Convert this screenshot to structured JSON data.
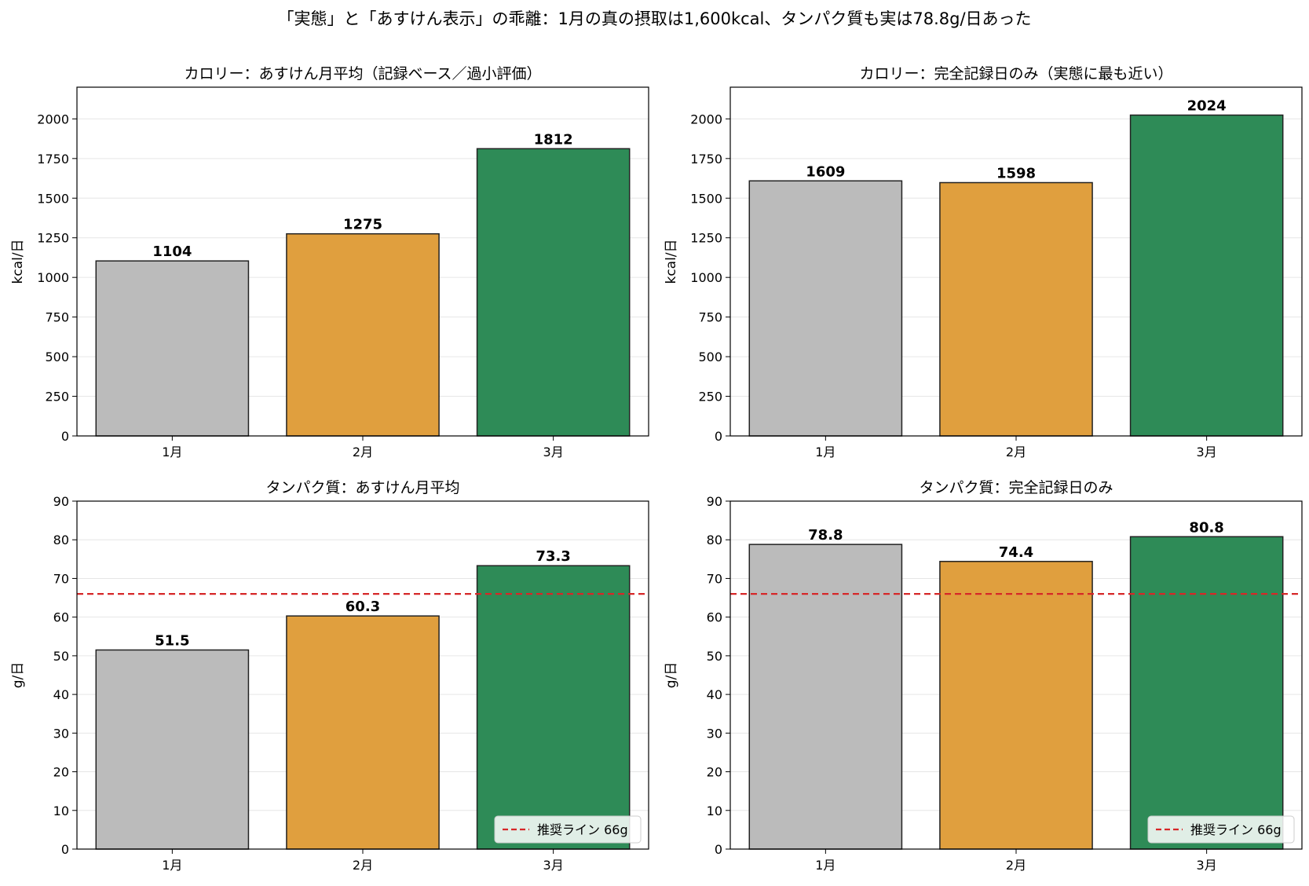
{
  "suptitle": "「実態」と「あすけん表示」の乖離：1月の真の摂取は1,600kcal、タンパク質も実は78.8g/日あった",
  "colors": {
    "jan": "#bbbbbb",
    "feb": "#e09f3e",
    "mar": "#2e8b57",
    "edge": "#222222",
    "recommended_line": "#d62728",
    "grid": "#e6e6e6"
  },
  "chart_data": [
    {
      "type": "bar",
      "title": "カロリー：あすけん月平均（記録ベース／過小評価）",
      "ylabel": "kcal/日",
      "categories": [
        "1月",
        "2月",
        "3月"
      ],
      "values": [
        1104,
        1275,
        1812
      ],
      "value_labels": [
        "1104",
        "1275",
        "1812"
      ],
      "ylim": [
        0,
        2200
      ],
      "yticks": [
        0,
        250,
        500,
        750,
        1000,
        1250,
        1500,
        1750,
        2000
      ],
      "grid": "horizontal"
    },
    {
      "type": "bar",
      "title": "カロリー：完全記録日のみ（実態に最も近い）",
      "ylabel": "kcal/日",
      "categories": [
        "1月",
        "2月",
        "3月"
      ],
      "values": [
        1609,
        1598,
        2024
      ],
      "value_labels": [
        "1609",
        "1598",
        "2024"
      ],
      "ylim": [
        0,
        2200
      ],
      "yticks": [
        0,
        250,
        500,
        750,
        1000,
        1250,
        1500,
        1750,
        2000
      ],
      "grid": "horizontal"
    },
    {
      "type": "bar",
      "title": "タンパク質：あすけん月平均",
      "ylabel": "g/日",
      "categories": [
        "1月",
        "2月",
        "3月"
      ],
      "values": [
        51.5,
        60.3,
        73.3
      ],
      "value_labels": [
        "51.5",
        "60.3",
        "73.3"
      ],
      "ylim": [
        0,
        90
      ],
      "yticks": [
        0,
        10,
        20,
        30,
        40,
        50,
        60,
        70,
        80,
        90
      ],
      "grid": "horizontal",
      "reference_line": {
        "value": 66,
        "label": "推奨ライン 66g",
        "style": "dashed"
      },
      "legend": "lower-right"
    },
    {
      "type": "bar",
      "title": "タンパク質：完全記録日のみ",
      "ylabel": "g/日",
      "categories": [
        "1月",
        "2月",
        "3月"
      ],
      "values": [
        78.8,
        74.4,
        80.8
      ],
      "value_labels": [
        "78.8",
        "74.4",
        "80.8"
      ],
      "ylim": [
        0,
        90
      ],
      "yticks": [
        0,
        10,
        20,
        30,
        40,
        50,
        60,
        70,
        80,
        90
      ],
      "grid": "horizontal",
      "reference_line": {
        "value": 66,
        "label": "推奨ライン 66g",
        "style": "dashed"
      },
      "legend": "lower-right"
    }
  ]
}
